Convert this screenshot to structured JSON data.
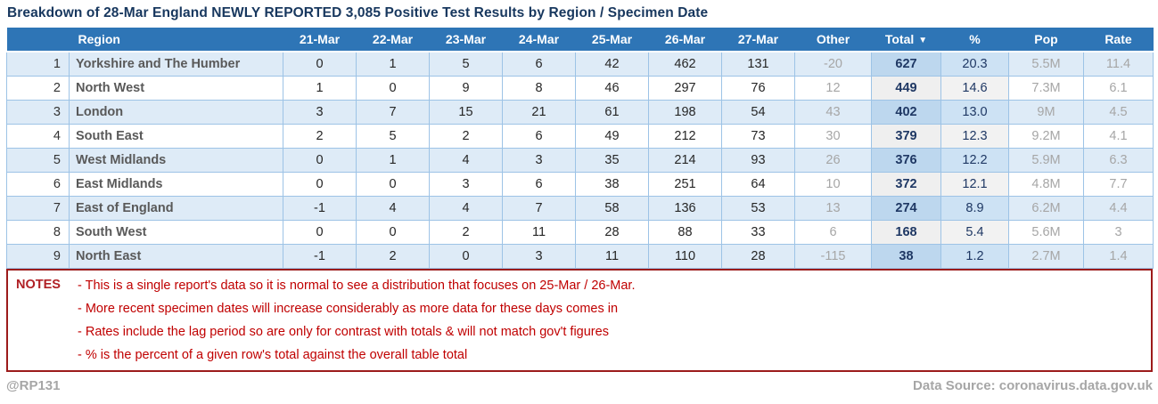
{
  "title": "Breakdown of 28-Mar England NEWLY REPORTED 3,085 Positive Test Results by Region / Specimen Date",
  "chart_data": {
    "type": "table",
    "title": "Breakdown of 28-Mar England NEWLY REPORTED 3,085 Positive Test Results by Region / Specimen Date",
    "headers": {
      "region": "Region",
      "d21": "21-Mar",
      "d22": "22-Mar",
      "d23": "23-Mar",
      "d24": "24-Mar",
      "d25": "25-Mar",
      "d26": "26-Mar",
      "d27": "27-Mar",
      "other": "Other",
      "total": "Total",
      "pct": "%",
      "pop": "Pop",
      "rate": "Rate"
    },
    "sort": {
      "column": "Total",
      "direction": "desc",
      "indicator": "▼"
    },
    "rows": [
      {
        "rank": "1",
        "region": "Yorkshire and The Humber",
        "d21": "0",
        "d22": "1",
        "d23": "5",
        "d24": "6",
        "d25": "42",
        "d26": "462",
        "d27": "131",
        "other": "-20",
        "total": "627",
        "pct": "20.3",
        "pop": "5.5M",
        "rate": "11.4"
      },
      {
        "rank": "2",
        "region": "North West",
        "d21": "1",
        "d22": "0",
        "d23": "9",
        "d24": "8",
        "d25": "46",
        "d26": "297",
        "d27": "76",
        "other": "12",
        "total": "449",
        "pct": "14.6",
        "pop": "7.3M",
        "rate": "6.1"
      },
      {
        "rank": "3",
        "region": "London",
        "d21": "3",
        "d22": "7",
        "d23": "15",
        "d24": "21",
        "d25": "61",
        "d26": "198",
        "d27": "54",
        "other": "43",
        "total": "402",
        "pct": "13.0",
        "pop": "9M",
        "rate": "4.5"
      },
      {
        "rank": "4",
        "region": "South East",
        "d21": "2",
        "d22": "5",
        "d23": "2",
        "d24": "6",
        "d25": "49",
        "d26": "212",
        "d27": "73",
        "other": "30",
        "total": "379",
        "pct": "12.3",
        "pop": "9.2M",
        "rate": "4.1"
      },
      {
        "rank": "5",
        "region": "West Midlands",
        "d21": "0",
        "d22": "1",
        "d23": "4",
        "d24": "3",
        "d25": "35",
        "d26": "214",
        "d27": "93",
        "other": "26",
        "total": "376",
        "pct": "12.2",
        "pop": "5.9M",
        "rate": "6.3"
      },
      {
        "rank": "6",
        "region": "East Midlands",
        "d21": "0",
        "d22": "0",
        "d23": "3",
        "d24": "6",
        "d25": "38",
        "d26": "251",
        "d27": "64",
        "other": "10",
        "total": "372",
        "pct": "12.1",
        "pop": "4.8M",
        "rate": "7.7"
      },
      {
        "rank": "7",
        "region": "East of England",
        "d21": "-1",
        "d22": "4",
        "d23": "4",
        "d24": "7",
        "d25": "58",
        "d26": "136",
        "d27": "53",
        "other": "13",
        "total": "274",
        "pct": "8.9",
        "pop": "6.2M",
        "rate": "4.4"
      },
      {
        "rank": "8",
        "region": "South West",
        "d21": "0",
        "d22": "0",
        "d23": "2",
        "d24": "11",
        "d25": "28",
        "d26": "88",
        "d27": "33",
        "other": "6",
        "total": "168",
        "pct": "5.4",
        "pop": "5.6M",
        "rate": "3"
      },
      {
        "rank": "9",
        "region": "North East",
        "d21": "-1",
        "d22": "2",
        "d23": "0",
        "d24": "3",
        "d25": "11",
        "d26": "110",
        "d27": "28",
        "other": "-115",
        "total": "38",
        "pct": "1.2",
        "pop": "2.7M",
        "rate": "1.4"
      }
    ]
  },
  "notes": {
    "label": "NOTES",
    "lines": [
      "- This is a single report's data so it is normal to see a distribution that focuses on 25-Mar / 26-Mar.",
      "- More recent specimen dates will increase considerably as more data for these days comes in",
      "- Rates include the lag period so are only for contrast with totals & will not match gov't figures",
      "- % is the percent of a given row's total against the overall table total"
    ]
  },
  "footer": {
    "handle": "@RP131",
    "source": "Data Source: coronavirus.data.gov.uk"
  },
  "colors": {
    "header_blue": "#2E75B6",
    "row_stripe_blue": "#DEEBF7",
    "total_highlight_blue": "#BDD7EE",
    "pct_highlight_blue": "#CDE2F4",
    "total_highlight_gray": "#EFEFEF",
    "grid_blue": "#9DC3E6",
    "title_navy": "#17375E",
    "total_text_navy": "#1F3864",
    "region_gray": "#595959",
    "muted_gray": "#A6A6A6",
    "notes_border_red": "#9C1B1B",
    "notes_label_red": "#B02025",
    "notes_text_red": "#C00000"
  }
}
